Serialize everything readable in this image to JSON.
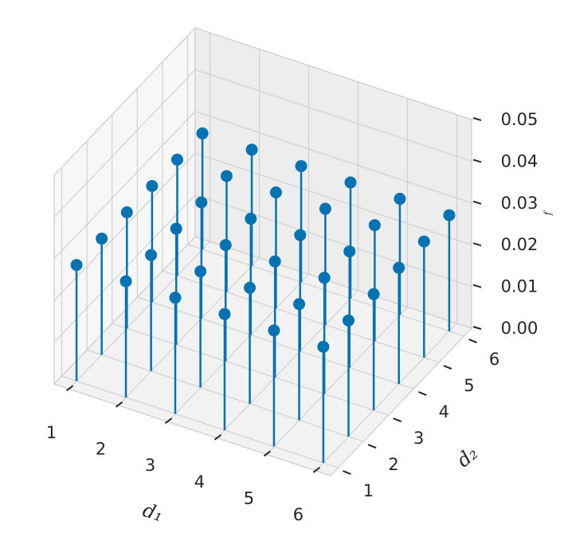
{
  "chart_data": {
    "type": "stem3d",
    "color": "#0173b2",
    "grid": true,
    "xlabel": "d₁",
    "ylabel": "d₂",
    "zlabel": "f",
    "x": [
      1,
      2,
      3,
      4,
      5,
      6,
      1,
      2,
      3,
      4,
      5,
      6,
      1,
      2,
      3,
      4,
      5,
      6,
      1,
      2,
      3,
      4,
      5,
      6,
      1,
      2,
      3,
      4,
      5,
      6,
      1,
      2,
      3,
      4,
      5,
      6
    ],
    "y": [
      1,
      1,
      1,
      1,
      1,
      1,
      2,
      2,
      2,
      2,
      2,
      2,
      3,
      3,
      3,
      3,
      3,
      3,
      4,
      4,
      4,
      4,
      4,
      4,
      5,
      5,
      5,
      5,
      5,
      5,
      6,
      6,
      6,
      6,
      6,
      6
    ],
    "values": [
      0.0278,
      0.0278,
      0.0278,
      0.0278,
      0.0278,
      0.0278,
      0.0278,
      0.0278,
      0.0278,
      0.0278,
      0.0278,
      0.0278,
      0.0278,
      0.0278,
      0.0278,
      0.0278,
      0.0278,
      0.0278,
      0.0278,
      0.0278,
      0.0278,
      0.0278,
      0.0278,
      0.0278,
      0.0278,
      0.0278,
      0.0278,
      0.0278,
      0.0278,
      0.0278,
      0.0278,
      0.0278,
      0.0278,
      0.0278,
      0.0278,
      0.0278
    ],
    "xlim": [
      0.7,
      6.3
    ],
    "xticks": [
      1,
      2,
      3,
      4,
      5,
      6
    ],
    "ylim": [
      0.7,
      6.3
    ],
    "yticks": [
      1,
      2,
      3,
      4,
      5,
      6
    ],
    "zlim": [
      0,
      0.05
    ],
    "zticks": [
      {
        "value": 0,
        "label": "0.00"
      },
      {
        "value": 0.01,
        "label": "0.01"
      },
      {
        "value": 0.02,
        "label": "0.02"
      },
      {
        "value": 0.03,
        "label": "0.03"
      },
      {
        "value": 0.04,
        "label": "0.04"
      },
      {
        "value": 0.05,
        "label": "0.05"
      }
    ]
  }
}
